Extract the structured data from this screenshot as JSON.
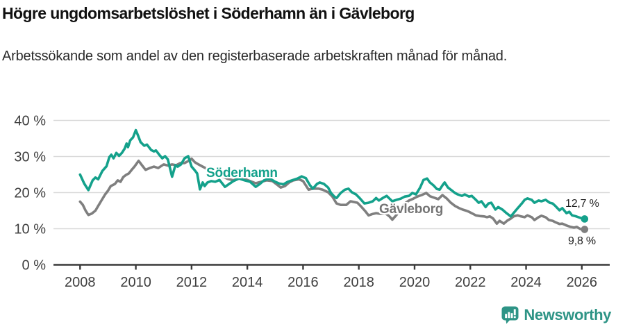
{
  "header": {
    "title": "Högre ungdomsarbetslöshet i Söderhamn än i Gävleborg",
    "subtitle": "Arbetssökande som andel av den registerbaserade arbetskraften månad för månad."
  },
  "footer": {
    "brand": "Newsworthy"
  },
  "colors": {
    "soderhamn": "#14a18b",
    "gavleborg": "#7f7f7f",
    "brand_teal": "#2e9486",
    "axis_text": "#3f3f3f",
    "gridline": "#d9d9d9",
    "axis_line": "#3a3a3a"
  },
  "chart_data": {
    "type": "line",
    "title": "Högre ungdomsarbetslöshet i Söderhamn än i Gävleborg",
    "subtitle": "Arbetssökande som andel av den registerbaserade arbetskraften månad för månad.",
    "unit": "%",
    "grid": true,
    "legend": "inline-labels",
    "x_axis": {
      "ticks": [
        2008,
        2010,
        2012,
        2014,
        2016,
        2018,
        2020,
        2022,
        2024,
        2026
      ],
      "range": [
        2007.6,
        2027.0
      ]
    },
    "y_axis": {
      "ticks": [
        {
          "value": 0,
          "label": "0 %"
        },
        {
          "value": 10,
          "label": "10 %"
        },
        {
          "value": 20,
          "label": "20 %"
        },
        {
          "value": 30,
          "label": "30 %"
        },
        {
          "value": 40,
          "label": "40 %"
        }
      ],
      "range": [
        0,
        43
      ]
    },
    "series": [
      {
        "name": "Söderhamn",
        "color": "#14a18b",
        "last_value": 12.7,
        "last_value_label": "12,7 %",
        "points": [
          [
            2008.0,
            25.0
          ],
          [
            2008.15,
            22.5
          ],
          [
            2008.3,
            20.7
          ],
          [
            2008.45,
            23.4
          ],
          [
            2008.55,
            24.2
          ],
          [
            2008.65,
            23.7
          ],
          [
            2008.8,
            26.0
          ],
          [
            2008.95,
            27.3
          ],
          [
            2009.05,
            29.8
          ],
          [
            2009.12,
            30.5
          ],
          [
            2009.2,
            29.5
          ],
          [
            2009.3,
            31.0
          ],
          [
            2009.4,
            30.2
          ],
          [
            2009.5,
            31.0
          ],
          [
            2009.6,
            32.2
          ],
          [
            2009.67,
            33.6
          ],
          [
            2009.72,
            32.6
          ],
          [
            2009.8,
            34.5
          ],
          [
            2009.9,
            35.3
          ],
          [
            2010.0,
            37.3
          ],
          [
            2010.08,
            35.8
          ],
          [
            2010.17,
            34.0
          ],
          [
            2010.3,
            33.0
          ],
          [
            2010.4,
            33.3
          ],
          [
            2010.55,
            31.8
          ],
          [
            2010.65,
            31.4
          ],
          [
            2010.72,
            31.7
          ],
          [
            2010.85,
            30.4
          ],
          [
            2010.95,
            29.5
          ],
          [
            2011.05,
            30.1
          ],
          [
            2011.15,
            29.2
          ],
          [
            2011.3,
            24.4
          ],
          [
            2011.42,
            27.6
          ],
          [
            2011.5,
            27.2
          ],
          [
            2011.62,
            27.8
          ],
          [
            2011.75,
            29.5
          ],
          [
            2011.88,
            30.1
          ],
          [
            2012.0,
            27.2
          ],
          [
            2012.1,
            26.3
          ],
          [
            2012.2,
            25.3
          ],
          [
            2012.3,
            20.9
          ],
          [
            2012.4,
            22.8
          ],
          [
            2012.47,
            21.8
          ],
          [
            2012.57,
            22.8
          ],
          [
            2012.7,
            23.2
          ],
          [
            2012.85,
            23.0
          ],
          [
            2013.0,
            23.5
          ],
          [
            2013.2,
            21.6
          ],
          [
            2013.35,
            22.4
          ],
          [
            2013.5,
            23.2
          ],
          [
            2013.7,
            23.9
          ],
          [
            2013.9,
            23.4
          ],
          [
            2014.1,
            23.0
          ],
          [
            2014.3,
            21.6
          ],
          [
            2014.45,
            22.4
          ],
          [
            2014.6,
            23.4
          ],
          [
            2014.8,
            23.9
          ],
          [
            2015.0,
            23.0
          ],
          [
            2015.15,
            22.5
          ],
          [
            2015.3,
            22.3
          ],
          [
            2015.45,
            23.0
          ],
          [
            2015.6,
            23.4
          ],
          [
            2015.8,
            23.9
          ],
          [
            2015.95,
            24.5
          ],
          [
            2016.1,
            24.0
          ],
          [
            2016.25,
            22.0
          ],
          [
            2016.35,
            21.1
          ],
          [
            2016.5,
            22.4
          ],
          [
            2016.6,
            22.8
          ],
          [
            2016.75,
            22.4
          ],
          [
            2016.9,
            21.4
          ],
          [
            2017.0,
            19.9
          ],
          [
            2017.12,
            18.9
          ],
          [
            2017.2,
            18.5
          ],
          [
            2017.35,
            19.9
          ],
          [
            2017.5,
            20.8
          ],
          [
            2017.63,
            21.1
          ],
          [
            2017.75,
            20.1
          ],
          [
            2017.9,
            19.5
          ],
          [
            2018.05,
            18.3
          ],
          [
            2018.2,
            17.0
          ],
          [
            2018.35,
            17.2
          ],
          [
            2018.5,
            17.6
          ],
          [
            2018.62,
            18.5
          ],
          [
            2018.72,
            17.8
          ],
          [
            2018.88,
            18.6
          ],
          [
            2019.0,
            19.1
          ],
          [
            2019.2,
            17.6
          ],
          [
            2019.35,
            18.0
          ],
          [
            2019.5,
            18.3
          ],
          [
            2019.65,
            18.9
          ],
          [
            2019.8,
            19.1
          ],
          [
            2019.92,
            19.9
          ],
          [
            2020.05,
            19.5
          ],
          [
            2020.2,
            21.4
          ],
          [
            2020.32,
            23.5
          ],
          [
            2020.45,
            23.9
          ],
          [
            2020.55,
            22.8
          ],
          [
            2020.68,
            22.0
          ],
          [
            2020.8,
            21.0
          ],
          [
            2020.9,
            20.8
          ],
          [
            2021.0,
            22.0
          ],
          [
            2021.08,
            22.8
          ],
          [
            2021.2,
            21.4
          ],
          [
            2021.3,
            20.8
          ],
          [
            2021.45,
            19.9
          ],
          [
            2021.55,
            19.5
          ],
          [
            2021.7,
            19.1
          ],
          [
            2021.8,
            19.5
          ],
          [
            2021.95,
            18.9
          ],
          [
            2022.05,
            19.1
          ],
          [
            2022.2,
            18.0
          ],
          [
            2022.3,
            17.2
          ],
          [
            2022.4,
            17.6
          ],
          [
            2022.55,
            16.0
          ],
          [
            2022.65,
            17.0
          ],
          [
            2022.75,
            17.2
          ],
          [
            2022.9,
            15.3
          ],
          [
            2023.0,
            16.0
          ],
          [
            2023.15,
            15.3
          ],
          [
            2023.3,
            14.3
          ],
          [
            2023.45,
            13.4
          ],
          [
            2023.55,
            14.3
          ],
          [
            2023.7,
            15.7
          ],
          [
            2023.85,
            17.0
          ],
          [
            2023.95,
            18.0
          ],
          [
            2024.05,
            18.4
          ],
          [
            2024.2,
            18.0
          ],
          [
            2024.3,
            17.2
          ],
          [
            2024.45,
            17.8
          ],
          [
            2024.55,
            17.6
          ],
          [
            2024.7,
            18.0
          ],
          [
            2024.85,
            17.2
          ],
          [
            2024.95,
            17.0
          ],
          [
            2025.05,
            16.3
          ],
          [
            2025.2,
            15.1
          ],
          [
            2025.3,
            15.7
          ],
          [
            2025.45,
            14.3
          ],
          [
            2025.55,
            14.7
          ],
          [
            2025.65,
            13.7
          ],
          [
            2025.8,
            13.4
          ],
          [
            2025.95,
            13.0
          ],
          [
            2026.1,
            12.7
          ]
        ]
      },
      {
        "name": "Gävleborg",
        "color": "#7f7f7f",
        "last_value": 9.8,
        "last_value_label": "9,8 %",
        "points": [
          [
            2008.0,
            17.5
          ],
          [
            2008.1,
            16.6
          ],
          [
            2008.2,
            15.0
          ],
          [
            2008.3,
            13.8
          ],
          [
            2008.42,
            14.2
          ],
          [
            2008.55,
            15.0
          ],
          [
            2008.65,
            16.3
          ],
          [
            2008.75,
            17.6
          ],
          [
            2008.9,
            19.5
          ],
          [
            2009.0,
            20.5
          ],
          [
            2009.1,
            21.8
          ],
          [
            2009.25,
            22.4
          ],
          [
            2009.35,
            23.4
          ],
          [
            2009.45,
            23.0
          ],
          [
            2009.55,
            24.3
          ],
          [
            2009.65,
            24.9
          ],
          [
            2009.75,
            25.3
          ],
          [
            2009.85,
            26.3
          ],
          [
            2009.95,
            27.2
          ],
          [
            2010.1,
            28.8
          ],
          [
            2010.22,
            27.6
          ],
          [
            2010.35,
            26.3
          ],
          [
            2010.5,
            26.8
          ],
          [
            2010.65,
            27.2
          ],
          [
            2010.8,
            26.8
          ],
          [
            2011.0,
            27.8
          ],
          [
            2011.15,
            27.5
          ],
          [
            2011.3,
            27.8
          ],
          [
            2011.45,
            27.6
          ],
          [
            2011.6,
            28.2
          ],
          [
            2011.75,
            28.2
          ],
          [
            2011.9,
            28.8
          ],
          [
            2012.0,
            29.4
          ],
          [
            2012.12,
            28.4
          ],
          [
            2012.25,
            27.8
          ],
          [
            2012.4,
            27.2
          ],
          [
            2012.55,
            26.6
          ],
          [
            2012.7,
            25.7
          ],
          [
            2012.82,
            24.9
          ],
          [
            2012.95,
            25.3
          ],
          [
            2013.1,
            24.5
          ],
          [
            2013.3,
            23.8
          ],
          [
            2013.5,
            23.4
          ],
          [
            2013.7,
            24.0
          ],
          [
            2013.9,
            23.8
          ],
          [
            2014.1,
            23.2
          ],
          [
            2014.3,
            22.6
          ],
          [
            2014.5,
            23.0
          ],
          [
            2014.7,
            23.4
          ],
          [
            2014.9,
            23.2
          ],
          [
            2015.05,
            22.3
          ],
          [
            2015.2,
            21.4
          ],
          [
            2015.35,
            21.8
          ],
          [
            2015.5,
            22.8
          ],
          [
            2015.65,
            23.4
          ],
          [
            2015.85,
            23.7
          ],
          [
            2016.0,
            23.2
          ],
          [
            2016.2,
            20.8
          ],
          [
            2016.35,
            21.1
          ],
          [
            2016.55,
            21.1
          ],
          [
            2016.7,
            20.8
          ],
          [
            2016.9,
            20.1
          ],
          [
            2017.05,
            18.9
          ],
          [
            2017.2,
            17.0
          ],
          [
            2017.35,
            16.6
          ],
          [
            2017.55,
            16.6
          ],
          [
            2017.7,
            17.6
          ],
          [
            2017.82,
            17.4
          ],
          [
            2017.95,
            17.2
          ],
          [
            2018.1,
            16.0
          ],
          [
            2018.25,
            14.7
          ],
          [
            2018.35,
            13.7
          ],
          [
            2018.5,
            14.1
          ],
          [
            2018.62,
            14.3
          ],
          [
            2018.8,
            14.1
          ],
          [
            2018.95,
            14.3
          ],
          [
            2019.1,
            13.4
          ],
          [
            2019.2,
            12.5
          ],
          [
            2019.35,
            13.8
          ],
          [
            2019.5,
            15.5
          ],
          [
            2019.65,
            17.0
          ],
          [
            2019.8,
            17.8
          ],
          [
            2019.95,
            18.3
          ],
          [
            2020.1,
            18.9
          ],
          [
            2020.25,
            19.3
          ],
          [
            2020.42,
            19.9
          ],
          [
            2020.55,
            19.0
          ],
          [
            2020.7,
            18.6
          ],
          [
            2020.85,
            18.2
          ],
          [
            2021.0,
            19.3
          ],
          [
            2021.15,
            18.4
          ],
          [
            2021.3,
            17.2
          ],
          [
            2021.45,
            16.3
          ],
          [
            2021.6,
            15.7
          ],
          [
            2021.72,
            15.3
          ],
          [
            2021.85,
            15.0
          ],
          [
            2021.95,
            14.7
          ],
          [
            2022.1,
            14.1
          ],
          [
            2022.2,
            13.7
          ],
          [
            2022.35,
            13.5
          ],
          [
            2022.5,
            13.4
          ],
          [
            2022.6,
            13.2
          ],
          [
            2022.7,
            13.4
          ],
          [
            2022.82,
            12.8
          ],
          [
            2022.95,
            11.4
          ],
          [
            2023.05,
            12.2
          ],
          [
            2023.2,
            11.4
          ],
          [
            2023.32,
            12.2
          ],
          [
            2023.45,
            12.8
          ],
          [
            2023.55,
            13.4
          ],
          [
            2023.7,
            13.7
          ],
          [
            2023.82,
            13.4
          ],
          [
            2023.95,
            13.2
          ],
          [
            2024.05,
            13.7
          ],
          [
            2024.2,
            13.2
          ],
          [
            2024.3,
            12.4
          ],
          [
            2024.45,
            13.2
          ],
          [
            2024.55,
            13.6
          ],
          [
            2024.7,
            13.2
          ],
          [
            2024.82,
            12.4
          ],
          [
            2024.95,
            12.2
          ],
          [
            2025.05,
            11.8
          ],
          [
            2025.2,
            11.3
          ],
          [
            2025.3,
            11.4
          ],
          [
            2025.45,
            10.9
          ],
          [
            2025.6,
            10.5
          ],
          [
            2025.72,
            10.3
          ],
          [
            2025.82,
            10.5
          ],
          [
            2025.95,
            9.9
          ],
          [
            2026.1,
            9.8
          ]
        ]
      }
    ]
  }
}
